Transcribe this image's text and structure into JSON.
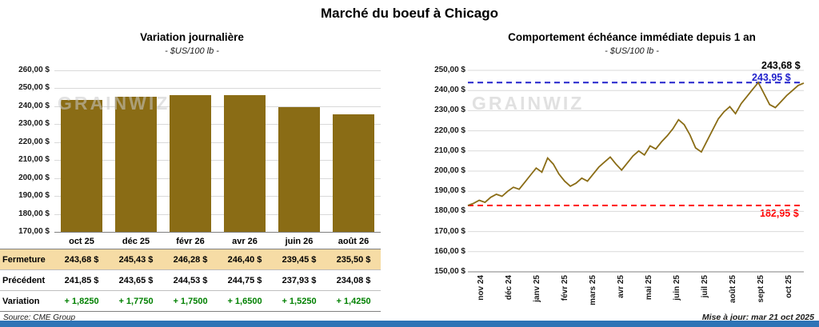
{
  "page": {
    "title": "Marché du boeuf à Chicago",
    "source": "Source: CME Group",
    "updated": "Mise à jour: mar 21 oct 2025",
    "watermark": "GRAINWIZ",
    "watermark_color": "#c9c9c9",
    "footer_color": "#2E74B6"
  },
  "chart_data": [
    {
      "type": "bar",
      "title": "Variation journalière",
      "subtitle": "- $US/100 lb -",
      "categories": [
        "oct 25",
        "déc 25",
        "févr 26",
        "avr 26",
        "juin 26",
        "août 26"
      ],
      "values": [
        243.68,
        245.43,
        246.28,
        246.4,
        239.45,
        235.5
      ],
      "ylim": [
        170,
        260
      ],
      "y_tick_labels": [
        "260,00 $",
        "250,00 $",
        "240,00 $",
        "230,00 $",
        "220,00 $",
        "210,00 $",
        "200,00 $",
        "190,00 $",
        "180,00 $",
        "170,00 $"
      ],
      "bar_color": "#8a6c15",
      "grid": true,
      "legend": "none"
    },
    {
      "type": "line",
      "title": "Comportement échéance immédiate depuis 1 an",
      "subtitle": "- $US/100 lb -",
      "x_labels": [
        "nov 24",
        "déc 24",
        "janv 25",
        "févr 25",
        "mars 25",
        "avr 25",
        "mai 25",
        "juin 25",
        "juil 25",
        "août 25",
        "sept 25",
        "oct 25"
      ],
      "ylim": [
        150,
        250
      ],
      "y_tick_labels": [
        "250,00 $",
        "240,00 $",
        "230,00 $",
        "220,00 $",
        "210,00 $",
        "200,00 $",
        "190,00 $",
        "180,00 $",
        "170,00 $",
        "160,00 $",
        "150,00 $"
      ],
      "series": [
        182.95,
        184.0,
        185.5,
        184.5,
        187.0,
        188.5,
        187.5,
        190.0,
        192.0,
        191.0,
        194.5,
        198.0,
        201.5,
        199.5,
        206.5,
        203.5,
        198.5,
        195.0,
        192.5,
        194.0,
        196.5,
        195.0,
        198.5,
        202.0,
        204.5,
        207.0,
        203.5,
        200.5,
        204.0,
        207.5,
        210.0,
        208.0,
        212.5,
        211.0,
        214.5,
        217.5,
        221.0,
        225.5,
        223.0,
        218.0,
        211.5,
        209.5,
        215.0,
        220.5,
        226.0,
        229.5,
        232.0,
        228.5,
        233.5,
        237.0,
        240.5,
        243.95,
        238.5,
        233.0,
        231.5,
        234.5,
        237.5,
        240.0,
        242.5,
        243.68
      ],
      "line_color": "#8a6c15",
      "high": {
        "value": 243.95,
        "label": "243,95 $",
        "color": "#2222CC"
      },
      "low": {
        "value": 182.95,
        "label": "182,95 $",
        "color": "#FF0000"
      },
      "last": {
        "value": 243.68,
        "label": "243,68 $",
        "color": "#000000"
      },
      "grid": true,
      "legend": "none"
    },
    {
      "type": "table",
      "columns": [
        "oct 25",
        "déc 25",
        "févr 26",
        "avr 26",
        "juin 26",
        "août 26"
      ],
      "rows": [
        {
          "label": "Fermeture",
          "values": [
            "243,68 $",
            "245,43 $",
            "246,28 $",
            "246,40 $",
            "239,45 $",
            "235,50 $"
          ],
          "highlight": true,
          "bg": "#F6DCA5"
        },
        {
          "label": "Précédent",
          "values": [
            "241,85 $",
            "243,65 $",
            "244,53 $",
            "244,75 $",
            "237,93 $",
            "234,08 $"
          ]
        },
        {
          "label": "Variation",
          "values": [
            "+ 1,8250",
            "+ 1,7750",
            "+ 1,7500",
            "+ 1,6500",
            "+ 1,5250",
            "+ 1,4250"
          ],
          "value_color": "#008000"
        }
      ]
    }
  ]
}
